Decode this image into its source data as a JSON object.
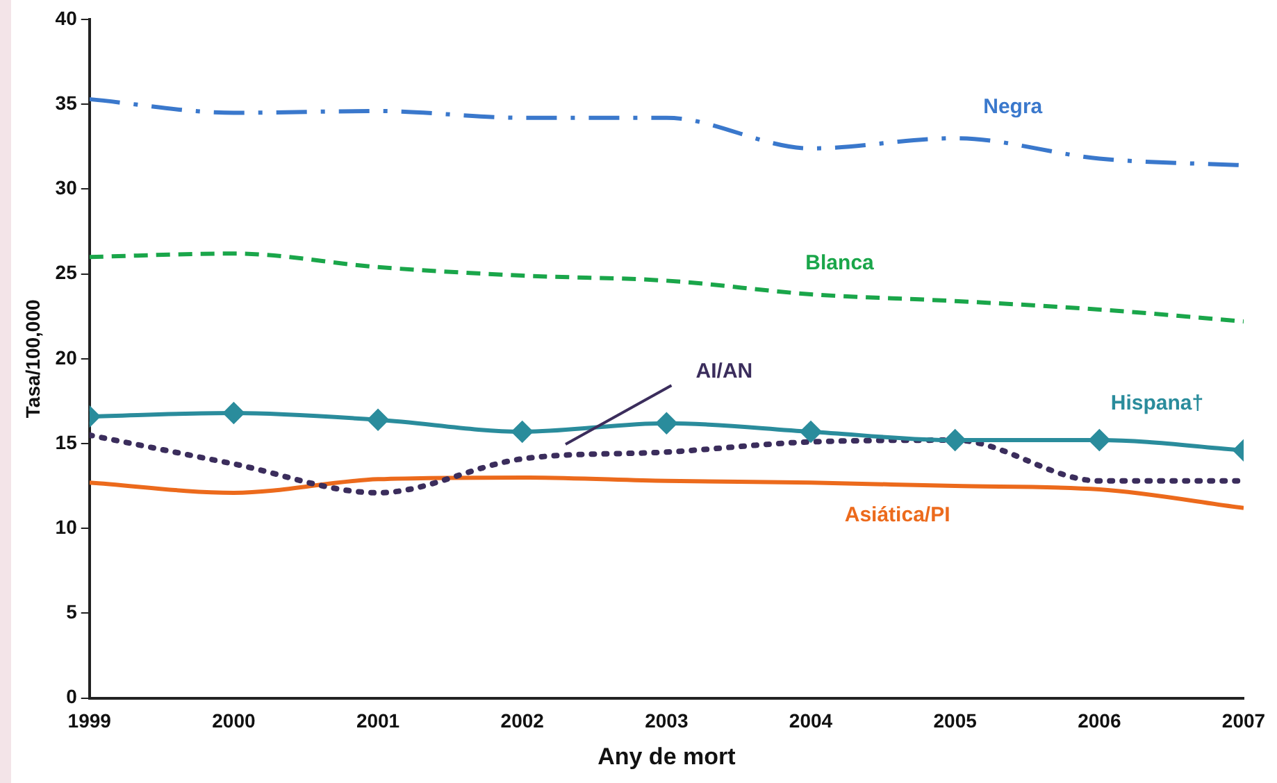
{
  "chart_data": {
    "type": "line",
    "xlabel": "Any de mort",
    "ylabel": "Tasa/100,000",
    "x": [
      1999,
      2000,
      2001,
      2002,
      2003,
      2004,
      2005,
      2006,
      2007
    ],
    "xlim": [
      1999,
      2007
    ],
    "xticks": [
      1999,
      2000,
      2001,
      2002,
      2003,
      2004,
      2005,
      2006,
      2007
    ],
    "ylim": [
      0,
      40
    ],
    "yticks": [
      0,
      5,
      10,
      15,
      20,
      25,
      30,
      35,
      40
    ],
    "grid": false,
    "legend": false,
    "marker": "none",
    "series": [
      {
        "name": "Negra",
        "color": "#3a78cc",
        "line_style": "dashdot",
        "values": [
          35.3,
          34.5,
          34.6,
          34.2,
          34.2,
          32.4,
          33.0,
          31.8,
          31.4
        ]
      },
      {
        "name": "Blanca",
        "color": "#1aa64a",
        "line_style": "dashed",
        "values": [
          26.0,
          26.2,
          25.4,
          24.9,
          24.6,
          23.8,
          23.4,
          22.9,
          22.2
        ]
      },
      {
        "name": "Hispana†",
        "color": "#2a8c9c",
        "line_style": "solid",
        "marker": "diamond",
        "values": [
          16.6,
          16.8,
          16.4,
          15.7,
          16.2,
          15.7,
          15.2,
          15.2,
          14.6
        ]
      },
      {
        "name": "AI/AN",
        "color": "#3b2d5c",
        "line_style": "dotted",
        "values": [
          15.5,
          13.8,
          12.1,
          14.1,
          14.5,
          15.1,
          15.2,
          12.8,
          12.8
        ]
      },
      {
        "name": "Asiática/PI",
        "color": "#ec6a1c",
        "line_style": "solid",
        "values": [
          12.7,
          12.1,
          12.9,
          13.0,
          12.8,
          12.7,
          12.5,
          12.3,
          11.2
        ]
      }
    ]
  }
}
